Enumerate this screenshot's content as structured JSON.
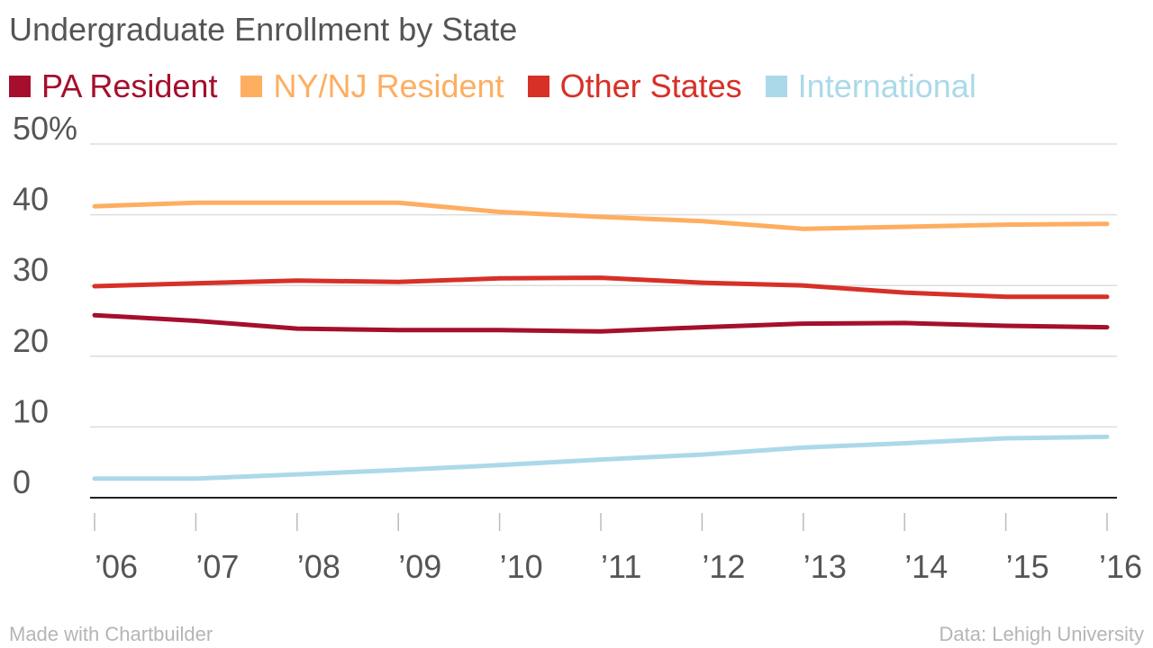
{
  "chart_data": {
    "type": "line",
    "title": "Undergraduate Enrollment by State",
    "x": [
      "’06",
      "’07",
      "’08",
      "’09",
      "’10",
      "’11",
      "’12",
      "’13",
      "’14",
      "’15",
      "’16"
    ],
    "y_ticks": [
      0,
      10,
      20,
      30,
      40,
      50
    ],
    "y_tick_labels": [
      "0",
      "10",
      "20",
      "30",
      "40",
      "50%"
    ],
    "ylim": [
      0,
      50
    ],
    "xlabel": "",
    "ylabel": "",
    "grid": true,
    "legend_position": "top-left",
    "series": [
      {
        "name": "PA Resident",
        "color": "#a50f2d",
        "values": [
          25.8,
          25.0,
          23.9,
          23.7,
          23.7,
          23.5,
          24.1,
          24.6,
          24.7,
          24.3,
          24.1
        ]
      },
      {
        "name": "NY/NJ Resident",
        "color": "#fdae61",
        "values": [
          41.2,
          41.7,
          41.7,
          41.7,
          40.4,
          39.7,
          39.1,
          38.0,
          38.3,
          38.6,
          38.7
        ]
      },
      {
        "name": "Other States",
        "color": "#d73027",
        "values": [
          29.9,
          30.3,
          30.7,
          30.5,
          31.0,
          31.1,
          30.4,
          30.0,
          29.0,
          28.4,
          28.4
        ]
      },
      {
        "name": "International",
        "color": "#abd9e9",
        "values": [
          2.7,
          2.7,
          3.3,
          3.9,
          4.6,
          5.4,
          6.1,
          7.1,
          7.7,
          8.4,
          8.6
        ]
      }
    ]
  },
  "footer": {
    "left": "Made with Chartbuilder",
    "right": "Data: Lehigh University"
  }
}
